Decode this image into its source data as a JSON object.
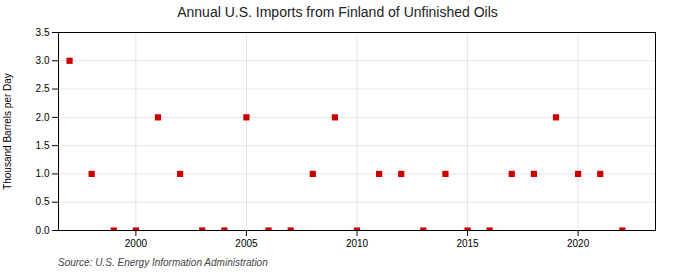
{
  "chart_data": {
    "type": "scatter",
    "title": "Annual U.S. Imports from Finland of Unfinished Oils",
    "ylabel": "Thousand Barrels per Day",
    "source": "Source: U.S. Energy Information Administration",
    "x": [
      1997,
      1998,
      1999,
      2000,
      2001,
      2002,
      2003,
      2004,
      2005,
      2006,
      2007,
      2008,
      2009,
      2010,
      2011,
      2012,
      2013,
      2014,
      2015,
      2016,
      2017,
      2018,
      2019,
      2020,
      2021,
      2022
    ],
    "values": [
      3.0,
      1.0,
      0.0,
      0.0,
      2.0,
      1.0,
      0.0,
      0.0,
      2.0,
      0.0,
      0.0,
      1.0,
      2.0,
      0.0,
      1.0,
      1.0,
      0.0,
      1.0,
      0.0,
      0.0,
      1.0,
      1.0,
      2.0,
      1.0,
      1.0,
      0.0
    ],
    "color": "#cc0000",
    "marker": "square",
    "xlim": [
      1996.5,
      2023.5
    ],
    "xticks": [
      2000,
      2005,
      2010,
      2015,
      2020
    ],
    "ylim": [
      0,
      3.5
    ],
    "yticks": [
      {
        "value": 0,
        "label": "0.0"
      },
      0.5,
      {
        "value": 1,
        "label": "1.0"
      },
      1.5,
      {
        "value": 2,
        "label": "2.0"
      },
      2.5,
      {
        "value": 3,
        "label": "3.0"
      },
      3.5
    ],
    "grid": true
  }
}
